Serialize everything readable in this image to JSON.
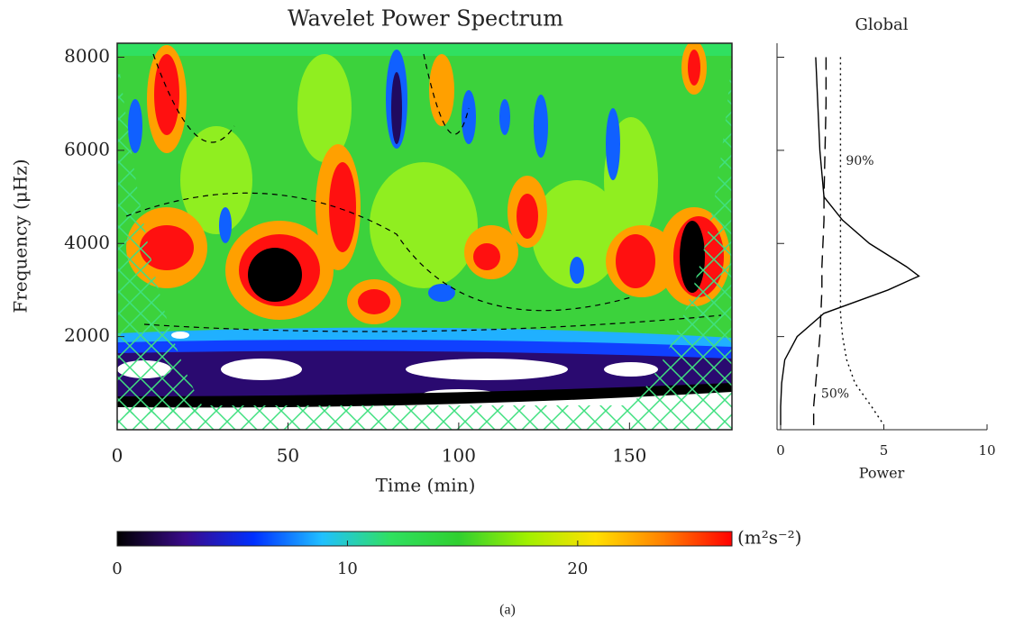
{
  "caption": "(a)",
  "chart_data": [
    {
      "type": "heatmap",
      "title": "Wavelet Power Spectrum",
      "x_label": "Time (min)",
      "y_label": "Frequency (μHz)",
      "xlim": [
        0,
        180
      ],
      "ylim": [
        0,
        8300
      ],
      "xticks": [
        0,
        50,
        100,
        150
      ],
      "yticks": [
        2000,
        4000,
        6000,
        8000
      ]
    },
    {
      "type": "line",
      "title": "Global",
      "x_label": "Power",
      "xlim": [
        0,
        10
      ],
      "xticks": [
        0,
        5,
        10
      ],
      "ylim": [
        0,
        8300
      ],
      "y": [
        8000,
        7000,
        6000,
        5000,
        4500,
        4000,
        3500,
        3300,
        3000,
        2500,
        2000,
        1500,
        1000,
        500,
        100
      ],
      "series": [
        {
          "color": "#000000",
          "dash": "solid",
          "values": [
            1.7,
            1.8,
            1.9,
            2.1,
            3.0,
            4.3,
            6.1,
            6.7,
            5.2,
            2.1,
            0.8,
            0.2,
            0.05,
            0.0,
            0.0
          ]
        },
        {
          "name": "90%",
          "color": "#000000",
          "dash": "dotted",
          "values": [
            2.9,
            2.9,
            2.9,
            2.9,
            2.9,
            2.9,
            2.9,
            2.9,
            2.9,
            2.9,
            3.0,
            3.2,
            3.6,
            4.4,
            5.0
          ]
        },
        {
          "name": "50%",
          "color": "#000000",
          "dash": "dashed",
          "values": [
            2.2,
            2.2,
            2.15,
            2.1,
            2.1,
            2.05,
            2.0,
            2.0,
            2.0,
            1.95,
            1.9,
            1.8,
            1.7,
            1.6,
            1.6
          ]
        }
      ]
    },
    {
      "type": "colorbar",
      "unit": "(m²s⁻²)",
      "xlim": [
        0,
        26.7
      ],
      "xticks": [
        0,
        10,
        20
      ],
      "colors": [
        "#000000",
        "#3a0a8a",
        "#0030ff",
        "#20c0ff",
        "#30e060",
        "#30d030",
        "#a0f000",
        "#ffe000",
        "#ff8000",
        "#ff0000"
      ]
    }
  ]
}
